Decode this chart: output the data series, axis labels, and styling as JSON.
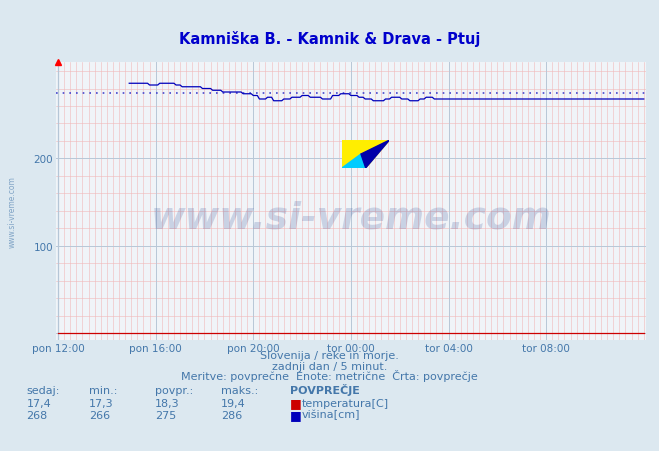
{
  "title": "Kamniška B. - Kamnik & Drava - Ptuj",
  "title_color": "#0000cc",
  "bg_color": "#dce8f0",
  "plot_bg_color": "#f0f4f8",
  "grid_major_color": "#b8c8d8",
  "grid_minor_color": "#f0b8b8",
  "text_color": "#4477aa",
  "temp_color": "#cc0000",
  "height_color": "#0000bb",
  "avg_color": "#4444cc",
  "watermark_text": "www.si-vreme.com",
  "watermark_color": "#1a3a8a",
  "watermark_alpha": 0.18,
  "footer_line1": "Slovenija / reke in morje.",
  "footer_line2": "zadnji dan / 5 minut.",
  "footer_line3": "Meritve: povprečne  Enote: metrične  Črta: povprečje",
  "xtick_labels": [
    "pon 12:00",
    "pon 16:00",
    "pon 20:00",
    "tor 00:00",
    "tor 04:00",
    "tor 08:00"
  ],
  "xtick_positions": [
    0,
    48,
    96,
    144,
    192,
    240
  ],
  "ytick_positions": [
    0,
    100,
    200
  ],
  "ytick_labels": [
    "",
    "100",
    "200"
  ],
  "ylim": [
    -8,
    310
  ],
  "xlim": [
    -1,
    289
  ],
  "n_points": 289,
  "height_avg": 275,
  "height_start": 286,
  "table_header": [
    "sedaj:",
    "min.:",
    "povpr.:",
    "maks.:",
    "POVPREČJE"
  ],
  "table_row1": [
    "17,4",
    "17,3",
    "18,3",
    "19,4"
  ],
  "table_row1_label": "temperatura[C]",
  "table_row1_color": "#cc0000",
  "table_row2": [
    "268",
    "266",
    "275",
    "286"
  ],
  "table_row2_label": "višina[cm]",
  "table_row2_color": "#0000bb"
}
